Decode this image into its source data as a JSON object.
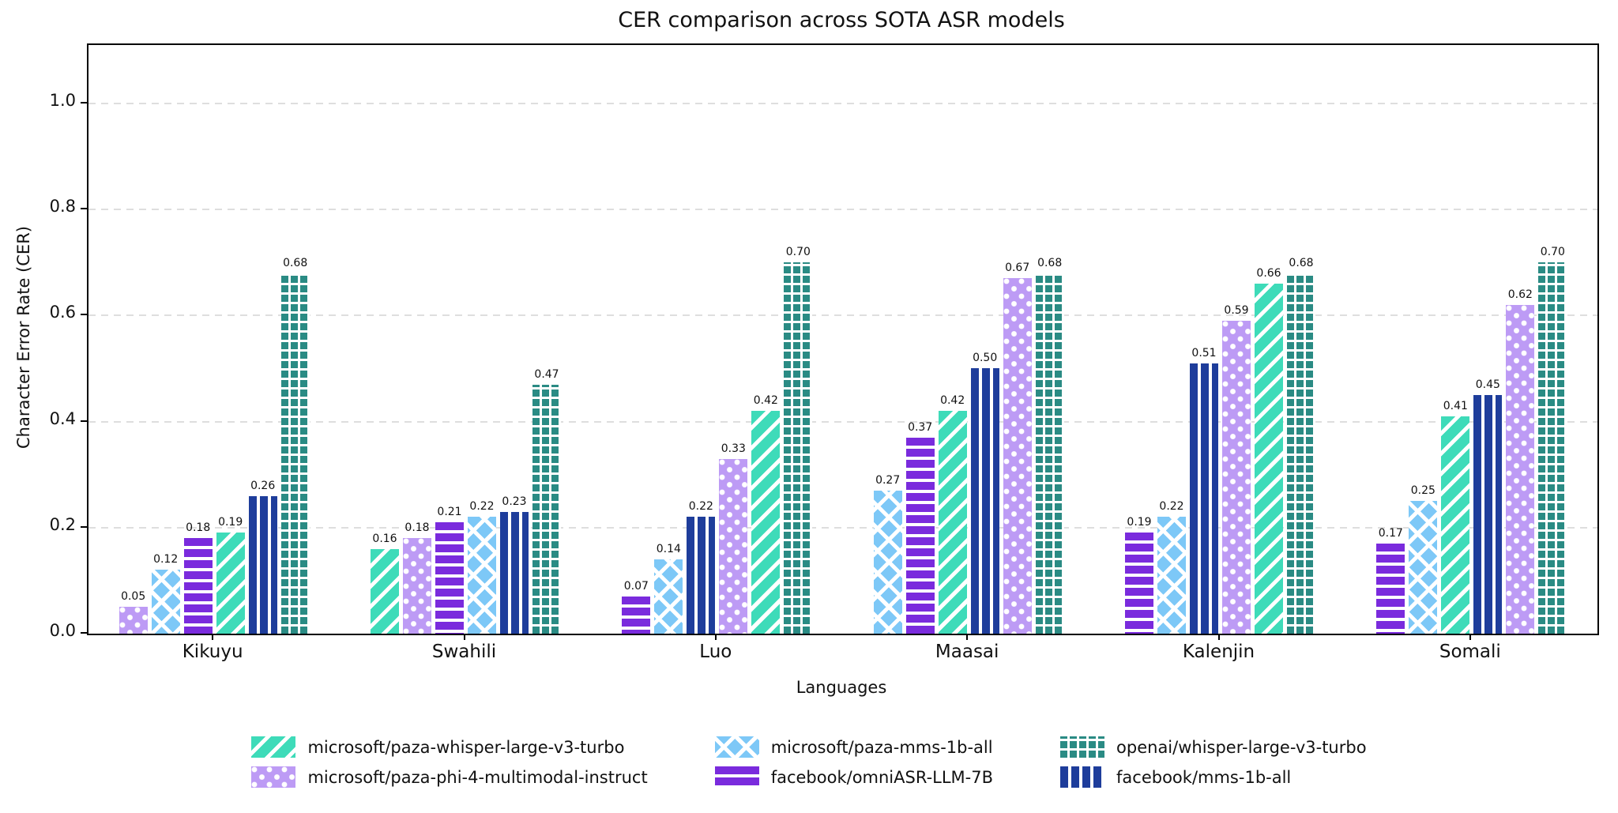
{
  "page": {
    "background": "#ffffff"
  },
  "chart_data": {
    "type": "bar",
    "title": "CER comparison across SOTA ASR models",
    "xlabel": "Languages",
    "ylabel": "Character Error Rate (CER)",
    "categories": [
      "Kikuyu",
      "Swahili",
      "Luo",
      "Maasai",
      "Kalenjin",
      "Somali"
    ],
    "yticks": [
      0.0,
      0.2,
      0.4,
      0.6,
      0.8,
      1.0
    ],
    "ylim": [
      0,
      1.11
    ],
    "grid": "dashed horizontal gridlines at y ticks",
    "bar_sort": "ascending within each language group",
    "value_label_decimals": 2,
    "gridline_color": "#dedede",
    "hatch_color": "#ffffff",
    "series": [
      {
        "name": "microsoft/paza-whisper-large-v3-turbo",
        "color": "#3EDBB9",
        "hatch": "diagonal",
        "values": [
          0.19,
          0.16,
          0.42,
          0.42,
          0.66,
          0.41
        ]
      },
      {
        "name": "microsoft/paza-mms-1b-all",
        "color": "#7DC8F7",
        "hatch": "cross",
        "values": [
          0.12,
          0.22,
          0.14,
          0.27,
          0.22,
          0.25
        ]
      },
      {
        "name": "openai/whisper-large-v3-turbo",
        "color": "#2A8B84",
        "hatch": "grid",
        "values": [
          0.68,
          0.47,
          0.7,
          0.68,
          0.68,
          0.7
        ]
      },
      {
        "name": "microsoft/paza-phi-4-multimodal-instruct",
        "color": "#BD9BF5",
        "hatch": "dots",
        "values": [
          0.05,
          0.18,
          0.33,
          0.67,
          0.59,
          0.62
        ]
      },
      {
        "name": "facebook/omniASR-LLM-7B",
        "color": "#7A2BDD",
        "hatch": "horizontal",
        "values": [
          0.18,
          0.21,
          0.07,
          0.37,
          0.19,
          0.17
        ]
      },
      {
        "name": "facebook/mms-1b-all",
        "color": "#1E3D9B",
        "hatch": "vertical",
        "values": [
          0.26,
          0.23,
          0.22,
          0.5,
          0.51,
          0.45
        ]
      }
    ],
    "legend": {
      "position": "bottom-center",
      "rows": 2,
      "columns": [
        [
          0,
          3
        ],
        [
          1,
          4
        ],
        [
          2,
          5
        ]
      ]
    }
  }
}
